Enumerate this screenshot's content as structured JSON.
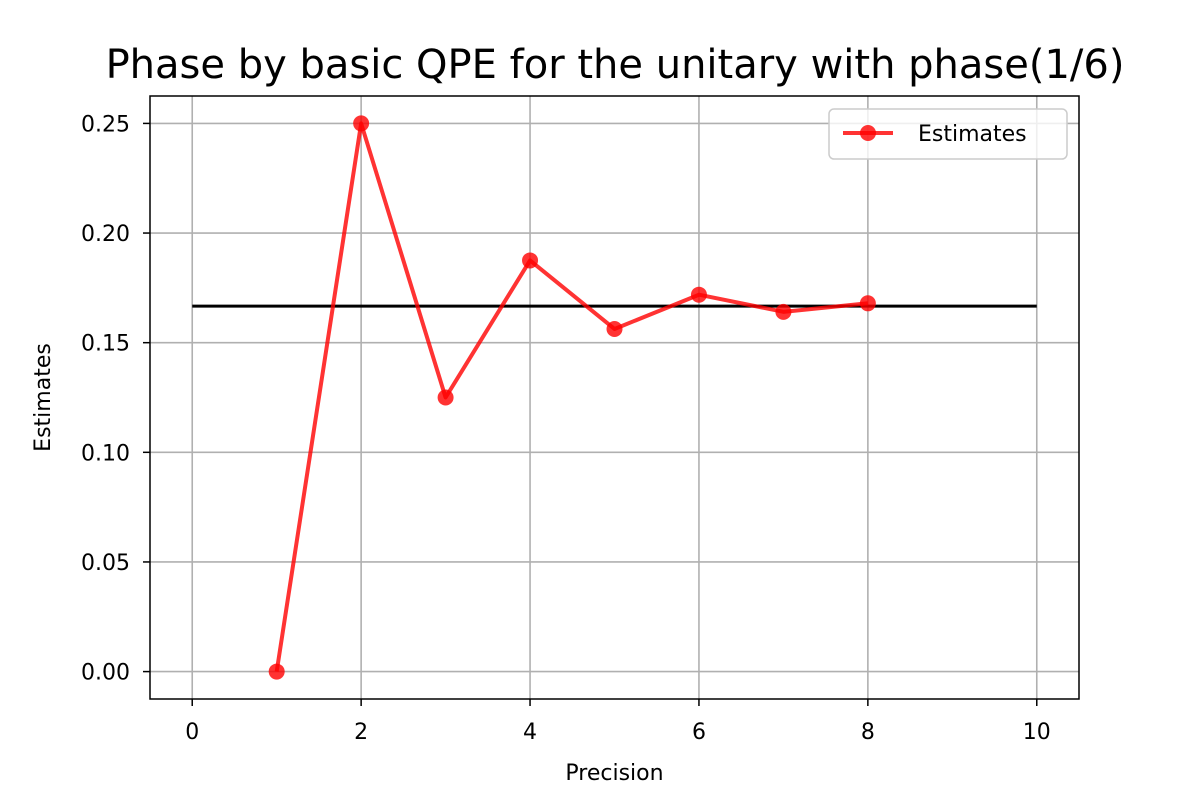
{
  "chart_data": {
    "type": "line",
    "title": "Phase by basic QPE for the unitary with phase(1/6)",
    "xlabel": "Precision",
    "ylabel": "Estimates",
    "xlim": [
      -0.5,
      10.5
    ],
    "ylim": [
      -0.0125,
      0.2625
    ],
    "xticks": [
      0,
      2,
      4,
      6,
      8,
      10
    ],
    "xtick_labels": [
      "0",
      "2",
      "4",
      "6",
      "8",
      "10"
    ],
    "yticks": [
      0.0,
      0.05,
      0.1,
      0.15,
      0.2,
      0.25
    ],
    "ytick_labels": [
      "0.00",
      "0.05",
      "0.10",
      "0.15",
      "0.20",
      "0.25"
    ],
    "grid": true,
    "legend_position": "upper right",
    "series": [
      {
        "name": "Estimates",
        "color": "#ff0000",
        "marker": "circle",
        "x": [
          1,
          2,
          3,
          4,
          5,
          6,
          7,
          8
        ],
        "y": [
          0.0,
          0.25,
          0.125,
          0.1875,
          0.15625,
          0.171875,
          0.1640625,
          0.16796875
        ]
      }
    ],
    "reference_line": {
      "color": "#000000",
      "x": [
        0,
        10
      ],
      "y": [
        0.16667,
        0.16667
      ]
    }
  }
}
